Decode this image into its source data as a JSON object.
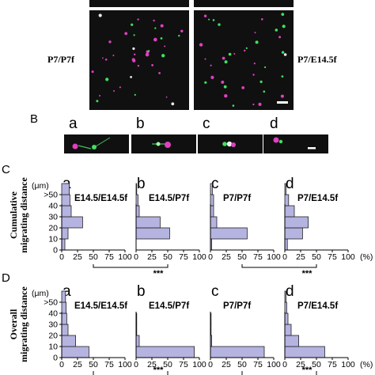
{
  "panel_a": {
    "left_label": "P7/P7f",
    "right_label": "P7/E14.5f"
  },
  "panel_b": {
    "letter": "B",
    "subpanels": [
      "a",
      "b",
      "c",
      "d"
    ]
  },
  "panel_c": {
    "letter": "C",
    "ylabel_line1": "Cumulative",
    "ylabel_line2": "migrating distance",
    "significance": [
      "***",
      "***"
    ]
  },
  "panel_d": {
    "letter": "D",
    "ylabel_line1": "Overall",
    "ylabel_line2": "migrating distance",
    "significance": [
      "***",
      "***"
    ]
  },
  "axis": {
    "y_unit": "(μm)",
    "y_ticks": [
      ">50",
      "40",
      "30",
      "20",
      "10",
      "0"
    ],
    "x_ticks": [
      "0",
      "25",
      "50",
      "75",
      "100"
    ],
    "x_unit": "(%)"
  },
  "colors": {
    "bar_fill": "#b5b3e0",
    "bar_stroke": "#222222",
    "micrograph_bg": "#101010",
    "magenta": "#e040c0",
    "green": "#40e060"
  },
  "chart_data": [
    {
      "type": "bar",
      "orientation": "horizontal",
      "panel": "C",
      "subpanel": "a",
      "title": "E14.5/E14.5f",
      "categories": [
        "0",
        "10",
        "20",
        "30",
        "40",
        ">50"
      ],
      "values": [
        5,
        10,
        33,
        15,
        13,
        12
      ],
      "xlim": [
        0,
        100
      ],
      "xunit": "%",
      "yunit": "μm"
    },
    {
      "type": "bar",
      "orientation": "horizontal",
      "panel": "C",
      "subpanel": "b",
      "title": "E14.5/P7f",
      "categories": [
        "0",
        "10",
        "20",
        "30",
        "40",
        ">50"
      ],
      "values": [
        0,
        53,
        38,
        5,
        3,
        1
      ],
      "xlim": [
        0,
        100
      ],
      "xunit": "%",
      "yunit": "μm"
    },
    {
      "type": "bar",
      "orientation": "horizontal",
      "panel": "C",
      "subpanel": "c",
      "title": "P7/P7f",
      "categories": [
        "0",
        "10",
        "20",
        "30",
        "40",
        ">50"
      ],
      "values": [
        2,
        58,
        10,
        5,
        5,
        3
      ],
      "xlim": [
        0,
        100
      ],
      "xunit": "%",
      "yunit": "μm"
    },
    {
      "type": "bar",
      "orientation": "horizontal",
      "panel": "C",
      "subpanel": "d",
      "title": "P7/E14.5f",
      "categories": [
        "0",
        "10",
        "20",
        "30",
        "40",
        ">50"
      ],
      "values": [
        4,
        28,
        37,
        15,
        6,
        2
      ],
      "xlim": [
        0,
        100
      ],
      "xunit": "%",
      "yunit": "μm"
    },
    {
      "type": "bar",
      "orientation": "horizontal",
      "panel": "D",
      "subpanel": "a",
      "title": "E14.5/E14.5f",
      "categories": [
        "0",
        "10",
        "20",
        "30",
        "40",
        ">50"
      ],
      "values": [
        43,
        22,
        10,
        8,
        7,
        6
      ],
      "xlim": [
        0,
        100
      ],
      "xunit": "%",
      "yunit": "μm"
    },
    {
      "type": "bar",
      "orientation": "horizontal",
      "panel": "D",
      "subpanel": "b",
      "title": "E14.5/P7f",
      "categories": [
        "0",
        "10",
        "20",
        "30",
        "40",
        ">50"
      ],
      "values": [
        92,
        5,
        1,
        1,
        0,
        0
      ],
      "xlim": [
        0,
        100
      ],
      "xunit": "%",
      "yunit": "μm"
    },
    {
      "type": "bar",
      "orientation": "horizontal",
      "panel": "D",
      "subpanel": "c",
      "title": "P7/P7f",
      "categories": [
        "0",
        "10",
        "20",
        "30",
        "40",
        ">50"
      ],
      "values": [
        85,
        2,
        1,
        1,
        0,
        0
      ],
      "xlim": [
        0,
        100
      ],
      "xunit": "%",
      "yunit": "μm"
    },
    {
      "type": "bar",
      "orientation": "horizontal",
      "panel": "D",
      "subpanel": "d",
      "title": "P7/E14.5f",
      "categories": [
        "0",
        "10",
        "20",
        "30",
        "40",
        ">50"
      ],
      "values": [
        63,
        22,
        10,
        5,
        3,
        2
      ],
      "xlim": [
        0,
        100
      ],
      "xunit": "%",
      "yunit": "μm"
    }
  ]
}
